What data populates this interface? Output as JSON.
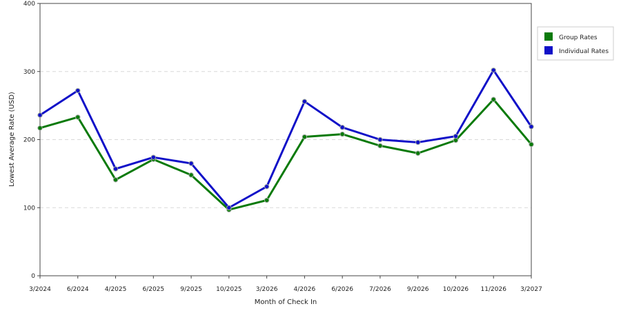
{
  "chart_data": {
    "type": "line",
    "title": "",
    "xlabel": "Month of Check In",
    "ylabel": "Lowest Average Rate (USD)",
    "ylim": [
      0,
      400
    ],
    "yticks": [
      "0",
      "100",
      "200",
      "300",
      "400"
    ],
    "grid": "horizontal dashed",
    "legend_position": "right",
    "categories": [
      "3/2024",
      "6/2024",
      "4/2025",
      "6/2025",
      "9/2025",
      "10/2025",
      "3/2026",
      "4/2026",
      "6/2026",
      "7/2026",
      "9/2026",
      "10/2026",
      "11/2026",
      "3/2027"
    ],
    "series": [
      {
        "name": "Group Rates",
        "color": "#0a7a0a",
        "values": [
          217,
          233,
          141,
          171,
          148,
          97,
          111,
          204,
          208,
          191,
          180,
          199,
          259,
          193
        ]
      },
      {
        "name": "Individual Rates",
        "color": "#1010c8",
        "values": [
          236,
          272,
          157,
          174,
          165,
          100,
          131,
          256,
          218,
          200,
          196,
          205,
          302,
          219
        ]
      }
    ]
  }
}
